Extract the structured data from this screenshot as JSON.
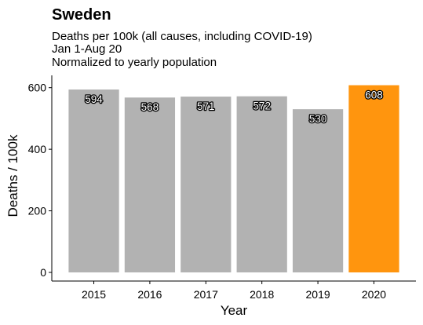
{
  "chart_data": {
    "type": "bar",
    "title": "Sweden",
    "subtitle_lines": [
      "Deaths per 100k (all causes, including COVID-19)",
      "Jan 1-Aug 20",
      "Normalized to yearly population"
    ],
    "xlabel": "Year",
    "ylabel": "Deaths / 100k",
    "categories": [
      "2015",
      "2016",
      "2017",
      "2018",
      "2019",
      "2020"
    ],
    "values": [
      594,
      568,
      571,
      572,
      530,
      608
    ],
    "data_labels": [
      "594",
      "568",
      "571",
      "572",
      "530",
      "608"
    ],
    "ylim": [
      0,
      640
    ],
    "yticks": [
      0,
      200,
      400,
      600
    ],
    "ytick_labels": [
      "0",
      "200",
      "400",
      "600"
    ],
    "grid": false,
    "legend": "none",
    "colors": {
      "default_bar": "#b2b2b2",
      "highlight_bar": "#ff950e",
      "axis": "#000000"
    },
    "highlight_category": "2020"
  }
}
